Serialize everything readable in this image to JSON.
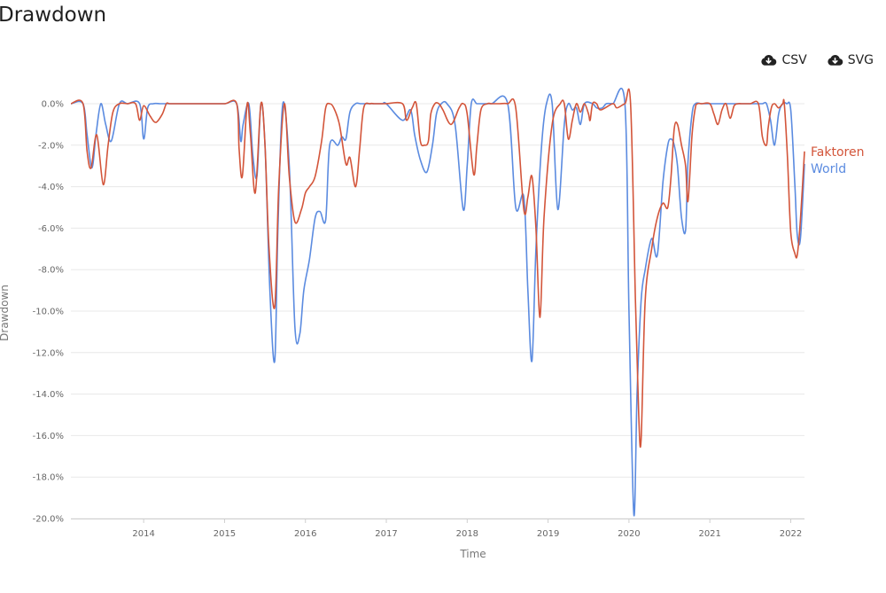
{
  "page": {
    "title": "Drawdown"
  },
  "toolbar": {
    "csv_label": "CSV",
    "svg_label": "SVG",
    "icon": "cloud-download-icon"
  },
  "chart_data": {
    "type": "line",
    "xlabel": "Time",
    "ylabel": "Drawdown",
    "xlim": [
      2013.1,
      2022.17
    ],
    "ylim": [
      -20.0,
      0.0
    ],
    "yticks": [
      0,
      -2,
      -4,
      -6,
      -8,
      -10,
      -12,
      -14,
      -16,
      -18,
      -20
    ],
    "ytick_labels": [
      "0.0%",
      "-2.0%",
      "-4.0%",
      "-6.0%",
      "-8.0%",
      "-10.0%",
      "-12.0%",
      "-14.0%",
      "-16.0%",
      "-18.0%",
      "-20.0%"
    ],
    "xticks": [
      2014,
      2015,
      2016,
      2017,
      2018,
      2019,
      2020,
      2021,
      2022
    ],
    "xtick_labels": [
      "2014",
      "2015",
      "2016",
      "2017",
      "2018",
      "2019",
      "2020",
      "2021",
      "2022"
    ],
    "grid": "horizontal",
    "legend": "end-of-line",
    "series": [
      {
        "name": "Faktoren",
        "color": "#d3553a",
        "x": [
          2013.1,
          2013.25,
          2013.3,
          2013.35,
          2013.42,
          2013.5,
          2013.56,
          2013.62,
          2013.7,
          2013.8,
          2013.9,
          2013.95,
          2014.0,
          2014.08,
          2014.15,
          2014.23,
          2014.28,
          2014.32,
          2014.4,
          2014.8,
          2015.0,
          2015.15,
          2015.18,
          2015.22,
          2015.28,
          2015.32,
          2015.38,
          2015.45,
          2015.5,
          2015.55,
          2015.62,
          2015.67,
          2015.74,
          2015.8,
          2015.87,
          2015.95,
          2016.0,
          2016.05,
          2016.12,
          2016.2,
          2016.25,
          2016.3,
          2016.35,
          2016.42,
          2016.5,
          2016.55,
          2016.62,
          2016.67,
          2016.72,
          2016.8,
          2016.85,
          2016.95,
          2017.0,
          2017.2,
          2017.25,
          2017.32,
          2017.37,
          2017.42,
          2017.47,
          2017.52,
          2017.55,
          2017.6,
          2017.65,
          2017.7,
          2017.8,
          2017.9,
          2017.95,
          2018.0,
          2018.08,
          2018.12,
          2018.17,
          2018.25,
          2018.3,
          2018.4,
          2018.5,
          2018.6,
          2018.7,
          2018.75,
          2018.8,
          2018.85,
          2018.9,
          2018.95,
          2019.05,
          2019.15,
          2019.2,
          2019.25,
          2019.3,
          2019.35,
          2019.4,
          2019.45,
          2019.5,
          2019.52,
          2019.55,
          2019.6,
          2019.65,
          2019.8,
          2019.85,
          2019.95,
          2020.02,
          2020.08,
          2020.12,
          2020.15,
          2020.2,
          2020.28,
          2020.35,
          2020.42,
          2020.48,
          2020.52,
          2020.56,
          2020.6,
          2020.65,
          2020.7,
          2020.73,
          2020.78,
          2020.82,
          2020.85,
          2020.9,
          2021.0,
          2021.05,
          2021.1,
          2021.15,
          2021.2,
          2021.25,
          2021.3,
          2021.35,
          2021.4,
          2021.5,
          2021.6,
          2021.65,
          2021.7,
          2021.72,
          2021.76,
          2021.8,
          2021.85,
          2021.9,
          2021.92,
          2021.96,
          2022.0,
          2022.05,
          2022.08,
          2022.12,
          2022.17
        ],
        "y": [
          0.0,
          0.0,
          -2.3,
          -3.1,
          -1.5,
          -3.9,
          -2.0,
          -0.4,
          0.0,
          0.0,
          0.0,
          -0.8,
          -0.1,
          -0.6,
          -0.9,
          -0.5,
          0.0,
          0.0,
          0.0,
          0.0,
          0.0,
          0.0,
          -2.2,
          -3.5,
          0.0,
          -1.5,
          -4.3,
          0.0,
          -2.0,
          -7.0,
          -9.8,
          -4.0,
          0.0,
          -3.5,
          -5.7,
          -5.1,
          -4.3,
          -4.0,
          -3.5,
          -1.8,
          -0.2,
          0.0,
          -0.2,
          -1.0,
          -2.9,
          -2.6,
          -4.0,
          -2.2,
          -0.2,
          0.0,
          0.0,
          0.0,
          0.0,
          0.0,
          -0.8,
          -0.2,
          0.0,
          -1.8,
          -2.0,
          -1.8,
          -0.5,
          0.0,
          0.0,
          -0.3,
          -1.0,
          -0.2,
          0.0,
          -0.5,
          -3.4,
          -2.0,
          -0.3,
          0.0,
          0.0,
          0.0,
          0.0,
          -0.2,
          -5.1,
          -4.5,
          -3.5,
          -6.0,
          -10.3,
          -5.5,
          -1.0,
          0.0,
          0.0,
          -1.7,
          -0.8,
          0.0,
          -0.4,
          0.0,
          -0.5,
          -0.8,
          0.0,
          0.0,
          -0.3,
          0.0,
          -0.2,
          0.0,
          0.0,
          -9.5,
          -15.0,
          -16.2,
          -9.5,
          -7.0,
          -5.5,
          -4.8,
          -5.0,
          -3.5,
          -1.2,
          -1.0,
          -2.0,
          -3.0,
          -4.7,
          -1.5,
          -0.2,
          0.0,
          0.0,
          0.0,
          -0.5,
          -1.0,
          -0.3,
          0.0,
          -0.7,
          -0.1,
          0.0,
          0.0,
          0.0,
          0.0,
          -1.6,
          -2.0,
          -1.2,
          -0.2,
          0.0,
          -0.2,
          0.0,
          0.0,
          -2.6,
          -6.2,
          -7.2,
          -7.3,
          -5.6,
          -2.3
        ]
      },
      {
        "name": "World",
        "color": "#5b8be0",
        "x": [
          2013.1,
          2013.25,
          2013.3,
          2013.36,
          2013.41,
          2013.47,
          2013.53,
          2013.6,
          2013.7,
          2013.8,
          2013.95,
          2014.0,
          2014.05,
          2014.12,
          2014.2,
          2014.25,
          2014.4,
          2014.8,
          2015.0,
          2015.15,
          2015.2,
          2015.23,
          2015.3,
          2015.35,
          2015.4,
          2015.45,
          2015.5,
          2015.56,
          2015.62,
          2015.66,
          2015.72,
          2015.8,
          2015.87,
          2015.93,
          2015.98,
          2016.05,
          2016.12,
          2016.18,
          2016.25,
          2016.3,
          2016.4,
          2016.45,
          2016.5,
          2016.55,
          2016.62,
          2016.68,
          2016.75,
          2016.85,
          2016.95,
          2017.0,
          2017.2,
          2017.3,
          2017.35,
          2017.42,
          2017.5,
          2017.57,
          2017.62,
          2017.68,
          2017.75,
          2017.85,
          2017.95,
          2018.0,
          2018.05,
          2018.12,
          2018.2,
          2018.3,
          2018.5,
          2018.6,
          2018.7,
          2018.75,
          2018.8,
          2018.85,
          2018.92,
          2018.98,
          2019.05,
          2019.12,
          2019.2,
          2019.25,
          2019.3,
          2019.35,
          2019.4,
          2019.45,
          2019.55,
          2019.6,
          2019.67,
          2019.72,
          2019.8,
          2019.95,
          2020.0,
          2020.06,
          2020.1,
          2020.15,
          2020.2,
          2020.28,
          2020.35,
          2020.42,
          2020.48,
          2020.52,
          2020.56,
          2020.6,
          2020.65,
          2020.7,
          2020.73,
          2020.78,
          2020.82,
          2020.9,
          2021.0,
          2021.05,
          2021.1,
          2021.15,
          2021.2,
          2021.3,
          2021.4,
          2021.5,
          2021.6,
          2021.65,
          2021.7,
          2021.75,
          2021.8,
          2021.85,
          2021.9,
          2021.95,
          2022.0,
          2022.05,
          2022.08,
          2022.12,
          2022.17
        ],
        "y": [
          0.0,
          0.0,
          -1.5,
          -3.1,
          -1.5,
          0.0,
          -1.0,
          -1.8,
          0.0,
          0.0,
          0.0,
          -1.7,
          -0.2,
          0.0,
          0.0,
          0.0,
          0.0,
          0.0,
          0.0,
          0.0,
          -1.8,
          -1.0,
          0.0,
          -2.5,
          -3.5,
          0.0,
          -2.0,
          -9.0,
          -12.4,
          -6.0,
          0.0,
          -3.0,
          -10.8,
          -11.1,
          -9.0,
          -7.5,
          -5.5,
          -5.2,
          -5.6,
          -2.0,
          -2.0,
          -1.6,
          -1.7,
          -0.4,
          0.0,
          0.0,
          0.0,
          0.0,
          0.0,
          0.0,
          -0.8,
          -0.3,
          -1.5,
          -2.7,
          -3.3,
          -2.0,
          -0.5,
          0.0,
          0.0,
          -1.0,
          -5.1,
          -3.0,
          0.0,
          0.0,
          0.0,
          0.0,
          0.0,
          -5.0,
          -4.5,
          -9.0,
          -12.4,
          -7.0,
          -2.0,
          0.0,
          0.0,
          -5.1,
          -1.0,
          0.0,
          -0.3,
          -0.2,
          -1.0,
          0.0,
          0.0,
          -0.2,
          -0.2,
          0.0,
          0.0,
          0.0,
          -10.0,
          -19.8,
          -14.0,
          -9.5,
          -8.0,
          -6.5,
          -7.3,
          -3.8,
          -2.0,
          -1.7,
          -2.0,
          -3.0,
          -5.5,
          -6.1,
          -2.8,
          -0.5,
          0.0,
          0.0,
          0.0,
          0.0,
          0.0,
          0.0,
          0.0,
          0.0,
          0.0,
          0.0,
          0.0,
          0.0,
          0.0,
          -0.8,
          -2.0,
          -0.5,
          0.0,
          0.0,
          -0.3,
          -3.8,
          -6.3,
          -6.5,
          -2.9
        ]
      }
    ]
  }
}
